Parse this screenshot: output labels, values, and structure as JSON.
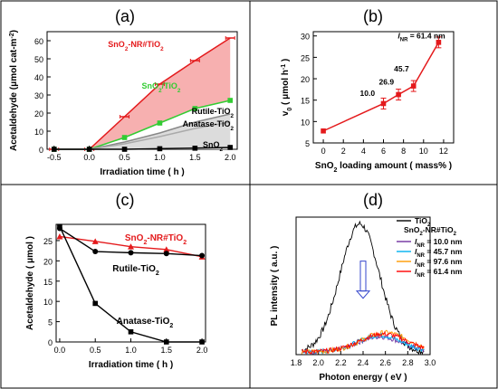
{
  "panels": {
    "a": {
      "label": "(a)"
    },
    "b": {
      "label": "(b)"
    },
    "c": {
      "label": "(c)"
    },
    "d": {
      "label": "(d)"
    }
  },
  "chart_data": [
    {
      "id": "a",
      "type": "line",
      "xlabel": "Irradiation time ( h )",
      "ylabel": "Acetaldehyde (μmol cat-m⁻²)",
      "xlim": [
        -0.6,
        2.1
      ],
      "ylim": [
        0,
        65
      ],
      "xticks": [
        "-0.5",
        "0.0",
        "0.5",
        "1.0",
        "1.5",
        "2.0"
      ],
      "yticks": [
        "0",
        "10",
        "20",
        "30",
        "40",
        "50",
        "60"
      ],
      "series": [
        {
          "name": "SnO₂-NR#TiO₂",
          "color": "#e41a1c",
          "marker": "errorbar",
          "fill": "#f7b0b0",
          "x": [
            -0.5,
            0.0,
            0.5,
            1.0,
            1.5,
            2.0
          ],
          "y": [
            0,
            0,
            18,
            36,
            49,
            61.5
          ]
        },
        {
          "name": "SnO₂/TiO₂",
          "color": "#33cc33",
          "marker": "square",
          "fill": null,
          "x": [
            -0.5,
            0.0,
            0.5,
            1.0,
            1.5,
            2.0
          ],
          "y": [
            0,
            0,
            6.5,
            14.5,
            22.5,
            27
          ]
        },
        {
          "name": "Rutile-TiO₂",
          "color": "#888888",
          "marker": "none",
          "fill": "#dcdcdc",
          "x": [
            -0.5,
            0.0,
            0.5,
            1.0,
            1.5,
            2.0
          ],
          "y": [
            0,
            0,
            4,
            9,
            15,
            19.5
          ]
        },
        {
          "name": "Anatase-TiO₂",
          "color": "#aaaaaa",
          "marker": "none",
          "fill": null,
          "x": [
            -0.5,
            0.0,
            0.5,
            1.0,
            1.5,
            2.0
          ],
          "y": [
            0,
            0,
            3,
            7,
            11.5,
            15
          ]
        },
        {
          "name": "SnO₂",
          "color": "#000000",
          "marker": "square",
          "fill": null,
          "x": [
            -0.5,
            0.0,
            0.5,
            1.0,
            1.5,
            2.0
          ],
          "y": [
            0,
            0,
            0,
            0.3,
            0.6,
            1
          ]
        }
      ]
    },
    {
      "id": "b",
      "type": "line",
      "xlabel": "SnO₂ loading amount ( mass% )",
      "ylabel": "v₀ ( μmol h⁻¹ )",
      "xlim": [
        -1,
        13
      ],
      "ylim": [
        5,
        31
      ],
      "xticks": [
        "0",
        "2",
        "4",
        "6",
        "8",
        "10",
        "12"
      ],
      "yticks": [
        "5",
        "10",
        "15",
        "20",
        "25",
        "30"
      ],
      "series": [
        {
          "name": "",
          "color": "#e41a1c",
          "marker": "square",
          "x": [
            0,
            6,
            7.5,
            9,
            11.5
          ],
          "y": [
            7.8,
            14.2,
            16.3,
            18.3,
            28.5
          ]
        }
      ],
      "annotations": [
        {
          "text": "10.0",
          "x": 4.4,
          "y": 16
        },
        {
          "text": "26.9",
          "x": 6.3,
          "y": 18.6
        },
        {
          "text": "45.7",
          "x": 7.8,
          "y": 21.7
        },
        {
          "text": "l",
          "sub": "NR",
          "suffix": " = 61.4 nm",
          "x": 9.8,
          "y": 29.4
        }
      ]
    },
    {
      "id": "c",
      "type": "line",
      "xlabel": "Irradiation time ( h )",
      "ylabel": "Acetaldehyde ( μmol )",
      "xlim": [
        -0.05,
        2.05
      ],
      "ylim": [
        0,
        29
      ],
      "xticks": [
        "0.0",
        "0.5",
        "1.0",
        "1.5",
        "2.0"
      ],
      "yticks": [
        "0",
        "5",
        "10",
        "15",
        "20",
        "25"
      ],
      "series": [
        {
          "name": "SnO₂-NR#TiO₂",
          "color": "#e41a1c",
          "marker": "triangle",
          "x": [
            0,
            0.5,
            1.0,
            1.5,
            2.0
          ],
          "y": [
            26,
            24.8,
            23.5,
            22.8,
            21
          ]
        },
        {
          "name": "Rutile-TiO₂",
          "color": "#000000",
          "marker": "circle",
          "x": [
            0,
            0.5,
            1.0,
            1.5,
            2.0
          ],
          "y": [
            28,
            22.3,
            22,
            21.8,
            21.3
          ]
        },
        {
          "name": "Anatase-TiO₂",
          "color": "#000000",
          "marker": "square",
          "x": [
            0,
            0.5,
            1.0,
            1.5,
            2.0
          ],
          "y": [
            28.5,
            9.5,
            2.5,
            0,
            0
          ]
        }
      ]
    },
    {
      "id": "d",
      "type": "line",
      "xlabel": "Photon energy ( eV )",
      "ylabel": "PL intensity  ( a.u. )",
      "xlim": [
        1.8,
        3.0
      ],
      "ylim": [
        0,
        1
      ],
      "xticks": [
        "1.8",
        "2.0",
        "2.2",
        "2.4",
        "2.6",
        "2.8",
        "3.0"
      ],
      "yticks": [],
      "legend": {
        "position": "top-right",
        "group_title": "SnO₂-NR#TiO₂"
      },
      "series": [
        {
          "name": "TiO₂",
          "color": "#000000",
          "peak": 2.37,
          "height": 0.93,
          "width": 0.25
        },
        {
          "name": "l",
          "name_sub": "NR",
          "name_suffix": " = 10.0 nm",
          "color": "#7030a0",
          "peak": 2.55,
          "height": 0.11,
          "width": 0.28
        },
        {
          "name": "l",
          "name_sub": "NR",
          "name_suffix": " = 45.7 nm",
          "color": "#00b0f0",
          "peak": 2.55,
          "height": 0.12,
          "width": 0.28
        },
        {
          "name": "l",
          "name_sub": "NR",
          "name_suffix": " = 97.6 nm",
          "color": "#ff9900",
          "peak": 2.6,
          "height": 0.14,
          "width": 0.3
        },
        {
          "name": "l",
          "name_sub": "NR",
          "name_suffix": " = 61.4 nm",
          "color": "#ff0000",
          "peak": 2.58,
          "height": 0.13,
          "width": 0.3
        }
      ],
      "arrow": {
        "from": 0.68,
        "to": 0.41,
        "x": 2.4,
        "color": "#3344cc"
      }
    }
  ]
}
